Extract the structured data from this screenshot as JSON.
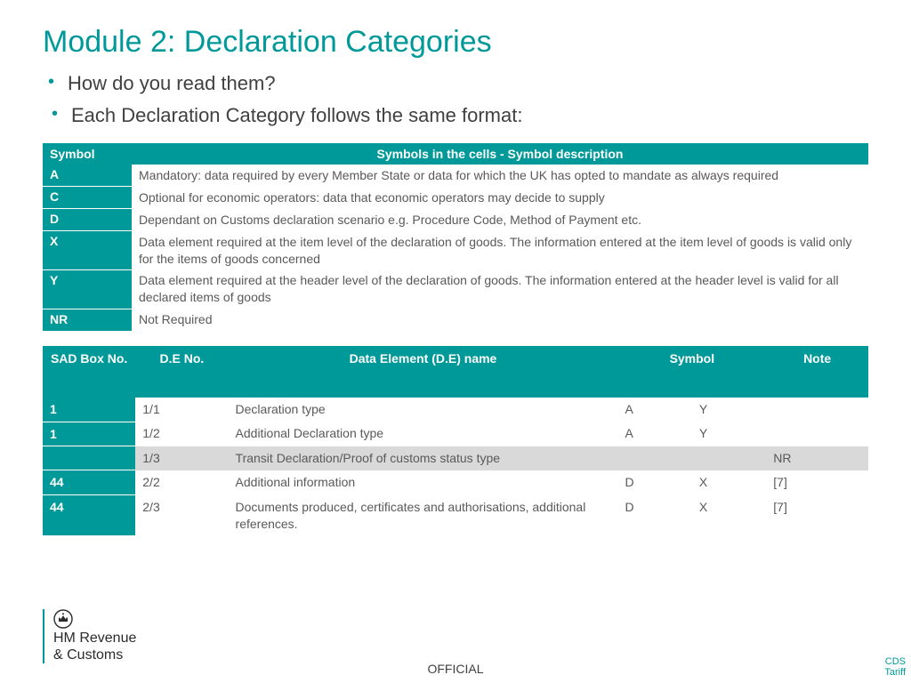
{
  "colors": {
    "accent": "#009999",
    "text": "#404040",
    "muted": "#595959",
    "grey_row": "#d9d9d9",
    "white": "#ffffff"
  },
  "title": "Module 2: Declaration Categories",
  "bullets": [
    "How do you read them?",
    "Each Declaration Category follows the same format:"
  ],
  "table1": {
    "headers": {
      "symbol": "Symbol",
      "desc": "Symbols in the cells - Symbol description"
    },
    "rows": [
      {
        "sym": "A",
        "desc": "Mandatory: data required by every Member State or data for which the UK has opted to mandate as always required"
      },
      {
        "sym": "C",
        "desc": "Optional for economic operators: data that economic operators may decide to supply"
      },
      {
        "sym": "D",
        "desc": "Dependant on Customs declaration scenario e.g. Procedure Code, Method of Payment etc."
      },
      {
        "sym": "X",
        "desc": "Data element required at the item level of the declaration of goods. The information entered at the item level of goods is valid only for the items of goods concerned"
      },
      {
        "sym": "Y",
        "desc": "Data element required at the header level of the declaration of goods. The information entered at the header level is valid for all declared items of goods"
      },
      {
        "sym": "NR",
        "desc": "Not Required"
      }
    ]
  },
  "table2": {
    "headers": {
      "sad": "SAD Box No.",
      "deno": "D.E No.",
      "name": "Data Element (D.E) name",
      "symbol": "Symbol",
      "note": "Note"
    },
    "rows": [
      {
        "sad": "1",
        "deno": "1/1",
        "name": "Declaration type",
        "s1": "A",
        "s2": "Y",
        "note": "",
        "grey": false
      },
      {
        "sad": "1",
        "deno": "1/2",
        "name": "Additional Declaration type",
        "s1": "A",
        "s2": "Y",
        "note": "",
        "grey": false
      },
      {
        "sad": "",
        "deno": "1/3",
        "name": "Transit Declaration/Proof of customs status type",
        "s1": "",
        "s2": "",
        "note": "NR",
        "grey": true
      },
      {
        "sad": "44",
        "deno": "2/2",
        "name": "Additional information",
        "s1": "D",
        "s2": "X",
        "note": "[7]",
        "grey": false
      },
      {
        "sad": "44",
        "deno": "2/3",
        "name": "Documents produced, certificates and authorisations, additional references.",
        "s1": "D",
        "s2": "X",
        "note": "[7]",
        "grey": false
      }
    ]
  },
  "logo": {
    "line1": "HM Revenue",
    "line2": "& Customs"
  },
  "footer": "OFFICIAL",
  "side": "CDS Tariff"
}
